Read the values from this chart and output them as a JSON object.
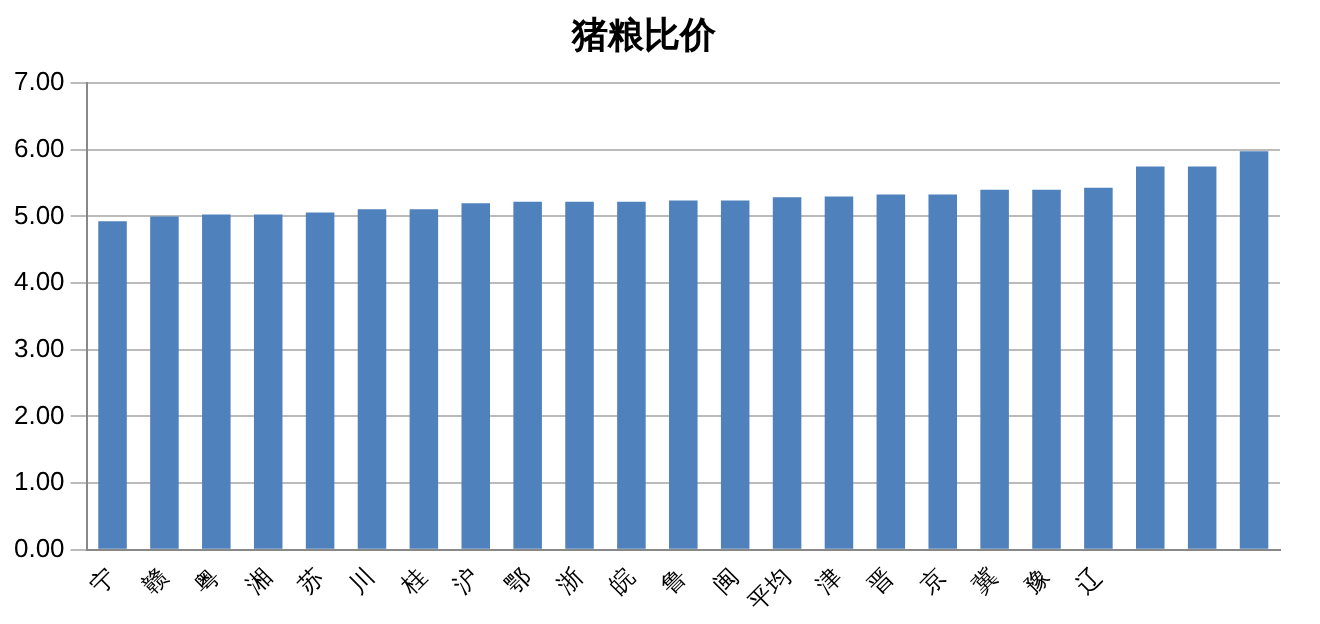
{
  "chart_data": {
    "type": "bar",
    "title": "猪粮比价",
    "categories": [
      "宁",
      "赣",
      "粤",
      "湘",
      "苏",
      "川",
      "桂",
      "沪",
      "鄂",
      "浙",
      "皖",
      "鲁",
      "闽",
      "平均",
      "津",
      "晋",
      "京",
      "冀",
      "豫",
      "辽",
      null,
      null,
      null
    ],
    "values": [
      4.93,
      5.0,
      5.03,
      5.03,
      5.06,
      5.11,
      5.11,
      5.2,
      5.22,
      5.22,
      5.22,
      5.24,
      5.24,
      5.29,
      5.3,
      5.33,
      5.33,
      5.4,
      5.4,
      5.43,
      5.75,
      5.75,
      5.98
    ],
    "color": "#4f81bd",
    "ylim": [
      0,
      7
    ],
    "yticks": [
      {
        "value": 0,
        "label": "0.00"
      },
      {
        "value": 1,
        "label": "1.00"
      },
      {
        "value": 2,
        "label": "2.00"
      },
      {
        "value": 3,
        "label": "3.00"
      },
      {
        "value": 4,
        "label": "4.00"
      },
      {
        "value": 5,
        "label": "5.00"
      },
      {
        "value": 6,
        "label": "6.00"
      },
      {
        "value": 7,
        "label": "7.00"
      }
    ],
    "grid": "y",
    "legend": false
  }
}
